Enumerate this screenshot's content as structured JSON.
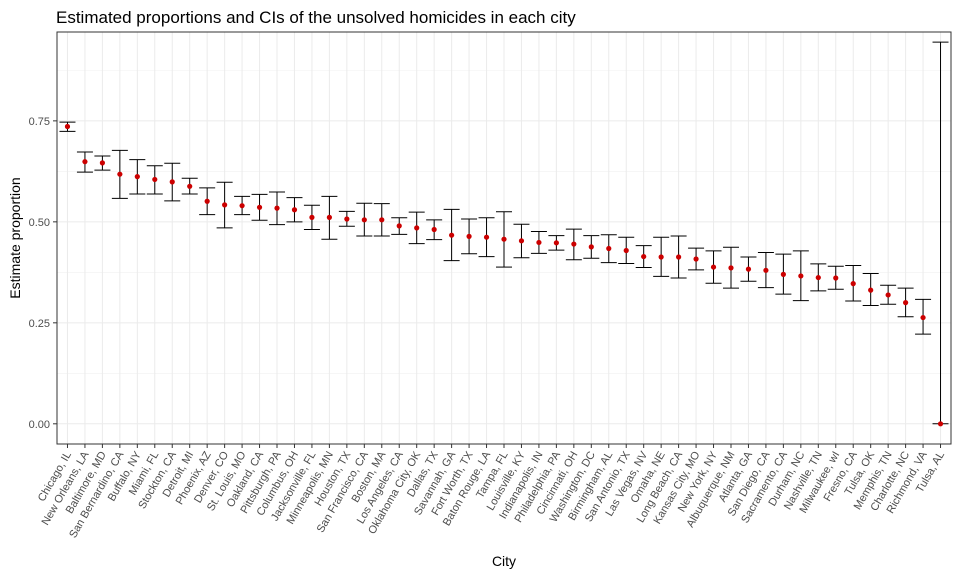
{
  "chart_data": {
    "type": "scatter",
    "subtype": "point-with-errorbars",
    "title": "Estimated proportions and CIs of the unsolved homicides in each city",
    "xlabel": "City",
    "ylabel": "Estimate proportion",
    "ylim": [
      -0.05,
      0.97
    ],
    "yticks": [
      0.0,
      0.25,
      0.5,
      0.75
    ],
    "ytick_labels": [
      "0.00",
      "0.25",
      "0.50",
      "0.75"
    ],
    "grid": true,
    "legend": "none",
    "point_color": "#cc0000",
    "errorbar_color": "#000000",
    "categories": [
      "Chicago, IL",
      "New Orleans, LA",
      "Baltimore, MD",
      "San Bernardino, CA",
      "Buffalo, NY",
      "Miami, FL",
      "Stockton, CA",
      "Detroit, MI",
      "Phoenix, AZ",
      "Denver, CO",
      "St. Louis, MO",
      "Oakland, CA",
      "Pittsburgh, PA",
      "Columbus, OH",
      "Jacksonville, FL",
      "Minneapolis, MN",
      "Houston, TX",
      "San Francisco, CA",
      "Boston, MA",
      "Los Angeles, CA",
      "Oklahoma City, OK",
      "Dallas, TX",
      "Savannah, GA",
      "Fort Worth, TX",
      "Baton Rouge, LA",
      "Tampa, FL",
      "Louisville, KY",
      "Indianapolis, IN",
      "Philadelphia, PA",
      "Cincinnati, OH",
      "Washington, DC",
      "Birmingham, AL",
      "San Antonio, TX",
      "Las Vegas, NV",
      "Omaha, NE",
      "Long Beach, CA",
      "Kansas City, MO",
      "New York, NY",
      "Albuquerque, NM",
      "Atlanta, GA",
      "San Diego, CA",
      "Sacramento, CA",
      "Durham, NC",
      "Nashville, TN",
      "Milwaukee, wI",
      "Fresno, CA",
      "Tulsa, OK",
      "Memphis, TN",
      "Charlotte, NC",
      "Richmond, VA",
      "Tulsa, AL"
    ],
    "estimate": [
      0.736,
      0.649,
      0.646,
      0.618,
      0.612,
      0.605,
      0.599,
      0.588,
      0.551,
      0.542,
      0.54,
      0.536,
      0.534,
      0.53,
      0.511,
      0.511,
      0.507,
      0.505,
      0.505,
      0.49,
      0.485,
      0.481,
      0.467,
      0.464,
      0.462,
      0.457,
      0.453,
      0.449,
      0.448,
      0.445,
      0.438,
      0.434,
      0.429,
      0.414,
      0.413,
      0.413,
      0.408,
      0.388,
      0.386,
      0.383,
      0.38,
      0.37,
      0.366,
      0.362,
      0.361,
      0.347,
      0.331,
      0.319,
      0.3,
      0.263,
      0.0
    ],
    "ci_lower": [
      0.724,
      0.623,
      0.628,
      0.558,
      0.569,
      0.569,
      0.552,
      0.569,
      0.518,
      0.485,
      0.518,
      0.504,
      0.493,
      0.5,
      0.481,
      0.457,
      0.489,
      0.465,
      0.465,
      0.469,
      0.446,
      0.456,
      0.404,
      0.421,
      0.414,
      0.388,
      0.411,
      0.422,
      0.43,
      0.406,
      0.41,
      0.399,
      0.397,
      0.387,
      0.365,
      0.361,
      0.381,
      0.348,
      0.336,
      0.353,
      0.337,
      0.321,
      0.305,
      0.329,
      0.333,
      0.304,
      0.293,
      0.296,
      0.265,
      0.222,
      0.0
    ],
    "ci_upper": [
      0.747,
      0.673,
      0.663,
      0.677,
      0.654,
      0.639,
      0.645,
      0.608,
      0.584,
      0.598,
      0.563,
      0.568,
      0.574,
      0.56,
      0.541,
      0.563,
      0.526,
      0.546,
      0.545,
      0.51,
      0.524,
      0.505,
      0.531,
      0.507,
      0.51,
      0.525,
      0.494,
      0.476,
      0.466,
      0.482,
      0.466,
      0.468,
      0.462,
      0.441,
      0.462,
      0.465,
      0.435,
      0.428,
      0.437,
      0.413,
      0.424,
      0.42,
      0.428,
      0.396,
      0.39,
      0.392,
      0.372,
      0.343,
      0.336,
      0.308,
      0.945
    ]
  }
}
